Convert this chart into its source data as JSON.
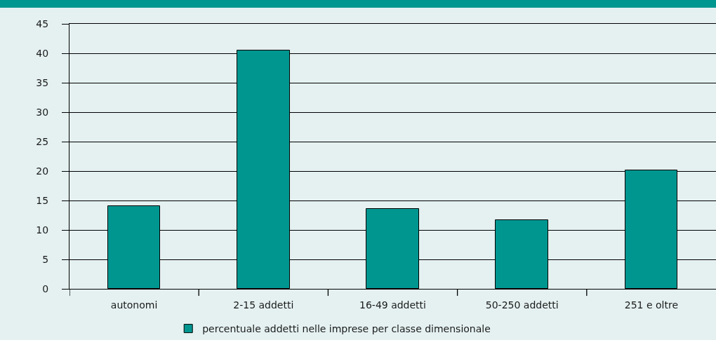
{
  "chart_data": {
    "type": "bar",
    "categories": [
      "autonomi",
      "2-15 addetti",
      "16-49 addetti",
      "50-250 addetti",
      "251 e oltre"
    ],
    "series": [
      {
        "name": "percentuale addetti nelle imprese per classe dimensionale",
        "color": "#009690",
        "values": [
          14.1,
          40.5,
          13.6,
          11.7,
          20.1
        ]
      }
    ],
    "ylim": [
      0,
      45
    ],
    "yticks": [
      0,
      5,
      10,
      15,
      20,
      25,
      30,
      35,
      40,
      45
    ],
    "grid": "y",
    "legend": "bottom"
  }
}
